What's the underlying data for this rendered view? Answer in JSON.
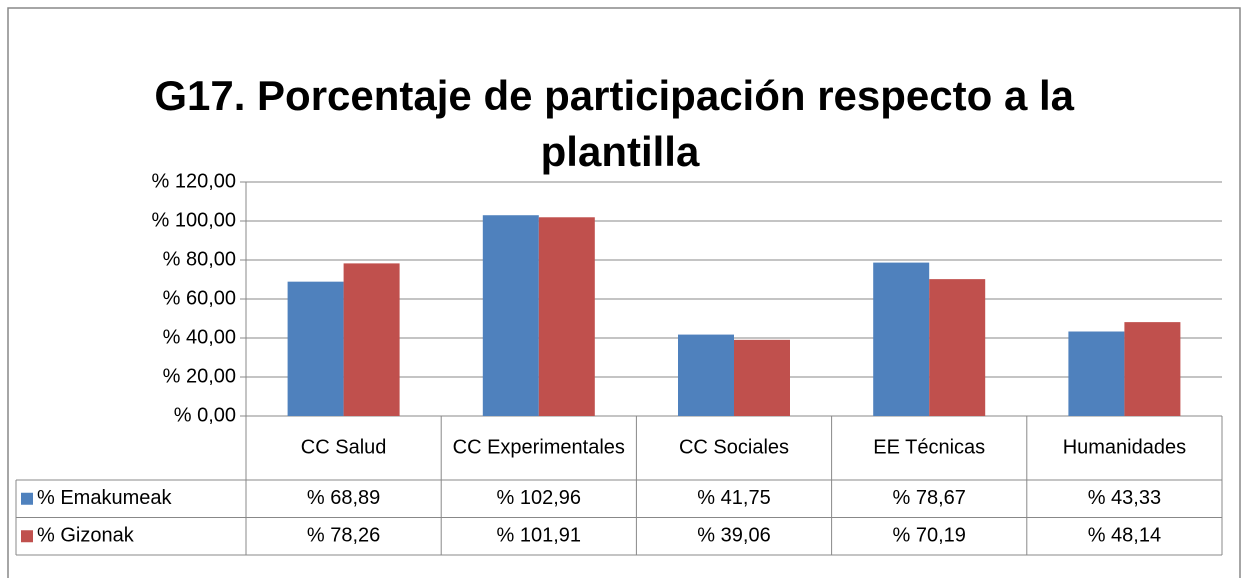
{
  "chart_data": {
    "type": "bar",
    "title": "G17. Porcentaje de participación respecto a la plantilla",
    "categories": [
      "CC Salud",
      "CC Experimentales",
      "CC Sociales",
      "EE Técnicas",
      "Humanidades"
    ],
    "series": [
      {
        "name": "% Emakumeak",
        "color": "#4f81bd",
        "values": [
          68.89,
          102.96,
          41.75,
          78.67,
          43.33
        ],
        "value_labels": [
          "% 68,89",
          "% 102,96",
          "% 41,75",
          "% 78,67",
          "% 43,33"
        ]
      },
      {
        "name": "% Gizonak",
        "color": "#c0504d",
        "values": [
          78.26,
          101.91,
          39.06,
          70.19,
          48.14
        ],
        "value_labels": [
          "% 78,26",
          "% 101,91",
          "% 39,06",
          "% 70,19",
          "% 48,14"
        ]
      }
    ],
    "ylim": [
      0,
      120
    ],
    "yticks": [
      {
        "value": 0,
        "label": "% 0,00"
      },
      {
        "value": 20,
        "label": "% 20,00"
      },
      {
        "value": 40,
        "label": "% 40,00"
      },
      {
        "value": 60,
        "label": "% 60,00"
      },
      {
        "value": 80,
        "label": "% 80,00"
      },
      {
        "value": 100,
        "label": "% 100,00"
      },
      {
        "value": 120,
        "label": "% 120,00"
      }
    ],
    "grid": true
  }
}
